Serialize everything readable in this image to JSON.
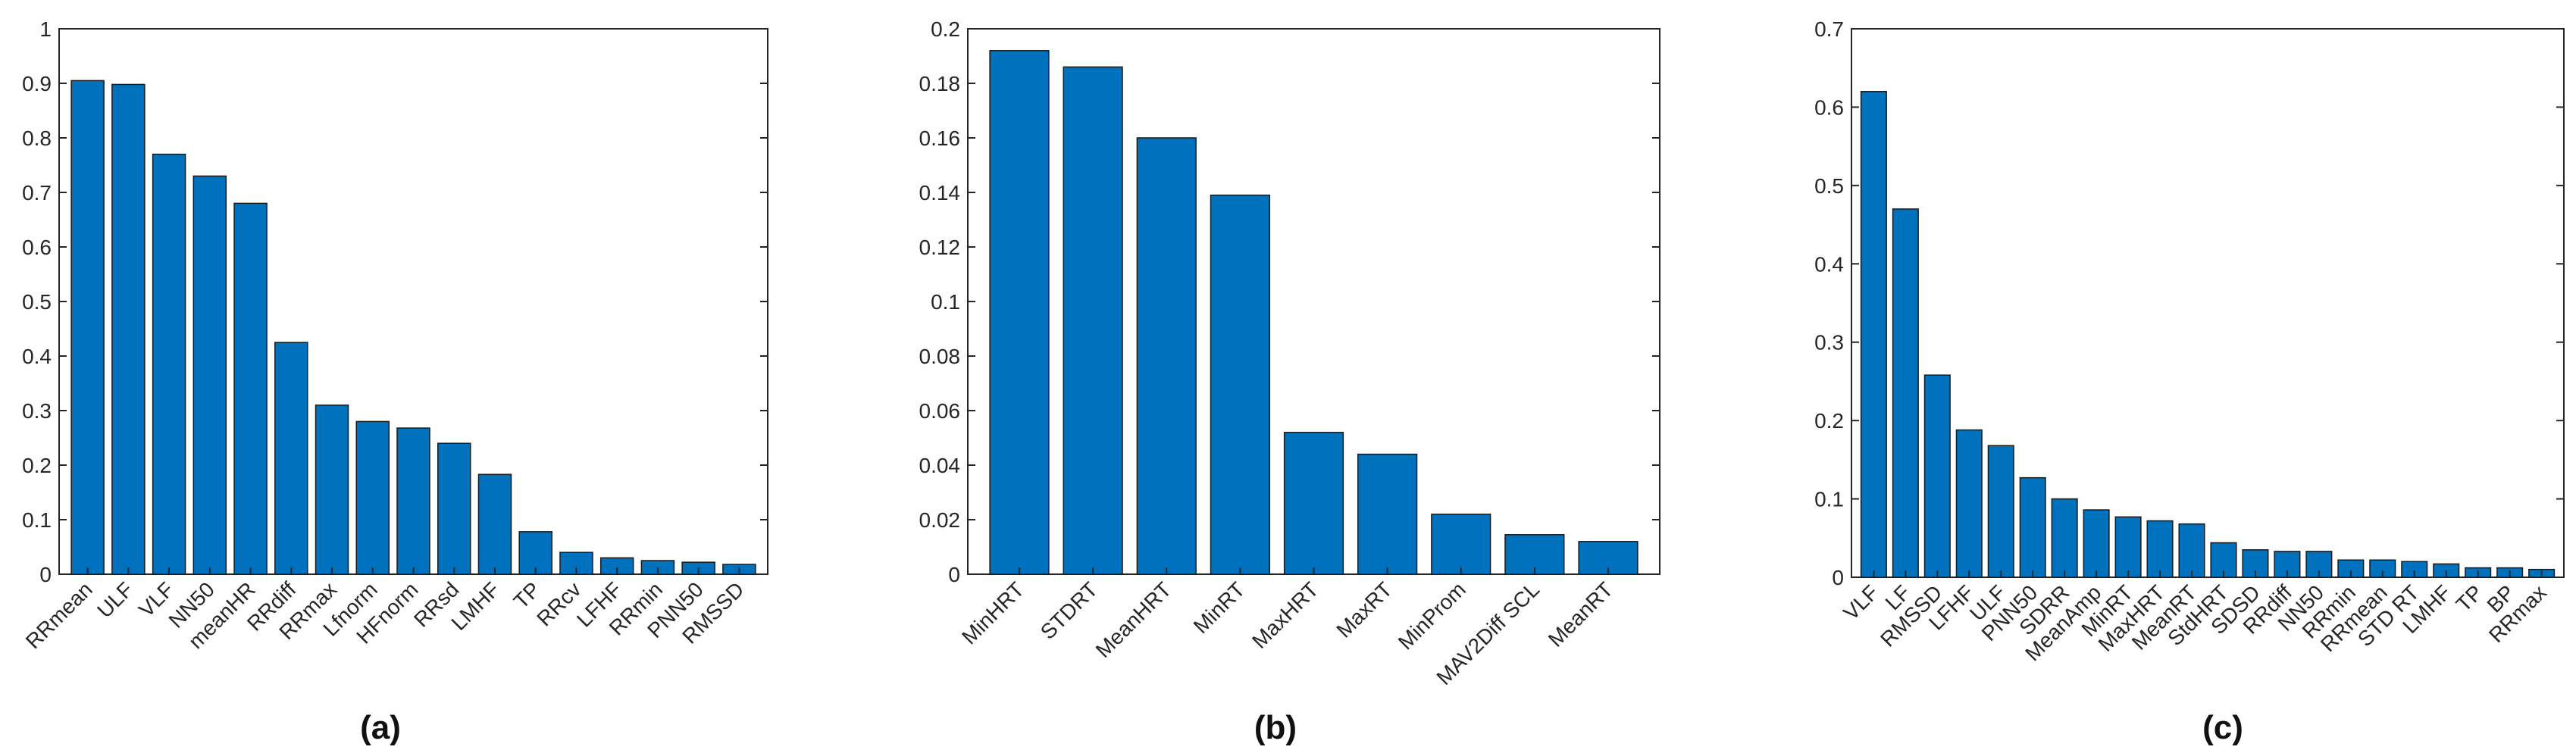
{
  "colors": {
    "bar": "#0072BD",
    "bar_edge": "#1a1a1a",
    "axis": "#262626"
  },
  "chart_data": [
    {
      "type": "bar",
      "caption": "(a)",
      "title": "",
      "xlabel": "",
      "ylabel": "",
      "ylim": [
        0,
        1
      ],
      "yticks": [
        "0",
        "0.1",
        "0.2",
        "0.3",
        "0.4",
        "0.5",
        "0.6",
        "0.7",
        "0.8",
        "0.9",
        "1"
      ],
      "categories": [
        "RRmean",
        "ULF",
        "VLF",
        "NN50",
        "meanHR",
        "RRdiff",
        "RRmax",
        "Lfnorm",
        "HFnorm",
        "RRsd",
        "LMHF",
        "TP",
        "RRcv",
        "LFHF",
        "RRmin",
        "PNN50",
        "RMSSD"
      ],
      "values": [
        0.905,
        0.898,
        0.77,
        0.73,
        0.68,
        0.425,
        0.31,
        0.28,
        0.268,
        0.24,
        0.183,
        0.078,
        0.04,
        0.03,
        0.025,
        0.022,
        0.018
      ],
      "grid": false
    },
    {
      "type": "bar",
      "caption": "(b)",
      "title": "",
      "xlabel": "",
      "ylabel": "",
      "ylim": [
        0,
        0.2
      ],
      "yticks": [
        "0",
        "0.02",
        "0.04",
        "0.06",
        "0.08",
        "0.1",
        "0.12",
        "0.14",
        "0.16",
        "0.18",
        "0.2"
      ],
      "categories": [
        "MinHRT",
        "STDRT",
        "MeanHRT",
        "MinRT",
        "MaxHRT",
        "MaxRT",
        "MinProm",
        "MAV2Diff SCL",
        "MeanRT"
      ],
      "values": [
        0.192,
        0.186,
        0.16,
        0.139,
        0.052,
        0.044,
        0.022,
        0.0145,
        0.012
      ],
      "grid": false
    },
    {
      "type": "bar",
      "caption": "(c)",
      "title": "",
      "xlabel": "",
      "ylabel": "",
      "ylim": [
        0,
        0.7
      ],
      "yticks": [
        "0",
        "0.1",
        "0.2",
        "0.3",
        "0.4",
        "0.5",
        "0.6",
        "0.7"
      ],
      "categories": [
        "VLF",
        "LF",
        "RMSSD",
        "LFHF",
        "ULF",
        "PNN50",
        "SDRR",
        "MeanAmp",
        "MinRT",
        "MaxHRT",
        "MeanRT",
        "StdHRT",
        "SDSD",
        "RRdiff",
        "NN50",
        "RRmin",
        "RRmean",
        "STD RT",
        "LMHF",
        "TP",
        "BP",
        "RRmax"
      ],
      "values": [
        0.62,
        0.47,
        0.258,
        0.188,
        0.168,
        0.127,
        0.1,
        0.086,
        0.077,
        0.072,
        0.068,
        0.044,
        0.035,
        0.033,
        0.033,
        0.022,
        0.022,
        0.02,
        0.017,
        0.012,
        0.012,
        0.01
      ],
      "grid": false
    }
  ]
}
